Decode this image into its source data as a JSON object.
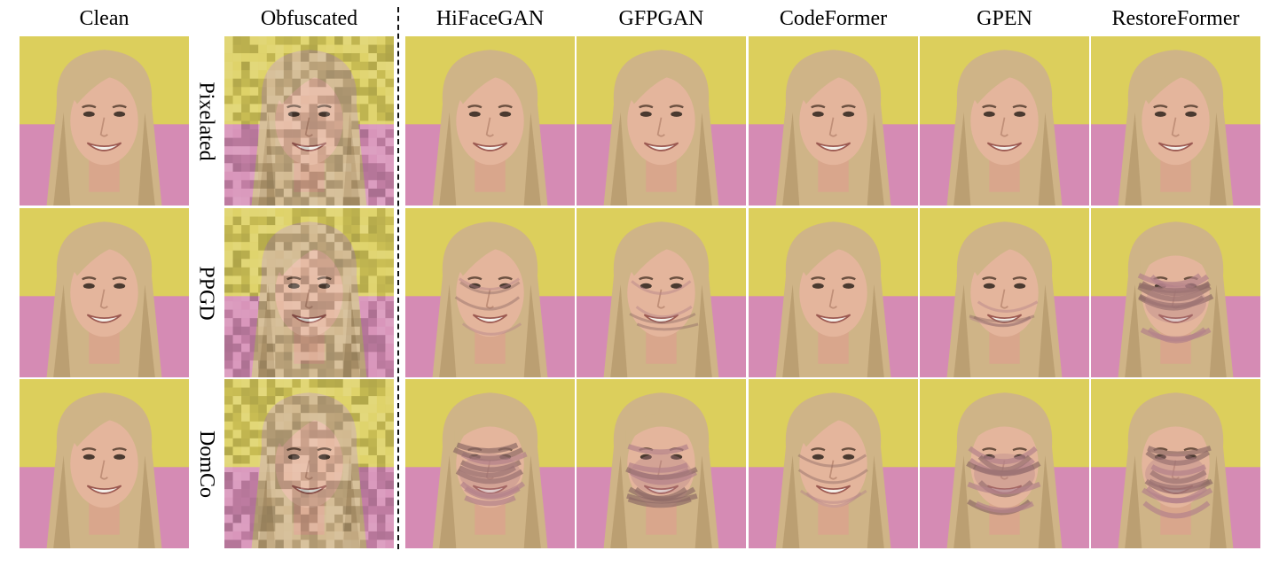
{
  "headers": {
    "clean": "Clean",
    "obfuscated": "Obfuscated",
    "hifacegan": "HiFaceGAN",
    "gfpgan": "GFPGAN",
    "codeformer": "CodeFormer",
    "gpen": "GPEN",
    "restoreformer": "RestoreFormer"
  },
  "rows": {
    "pixelated": "Pixelated",
    "ppgd": "PPGD",
    "domco": "DomCo"
  },
  "palette": {
    "background_yellow": "#dccf5c",
    "background_pink": "#d58bb4",
    "hair": "#cfb487",
    "hair_shadow": "#a88a5e",
    "skin": "#e4b59c",
    "distortion": "#b4828a"
  }
}
